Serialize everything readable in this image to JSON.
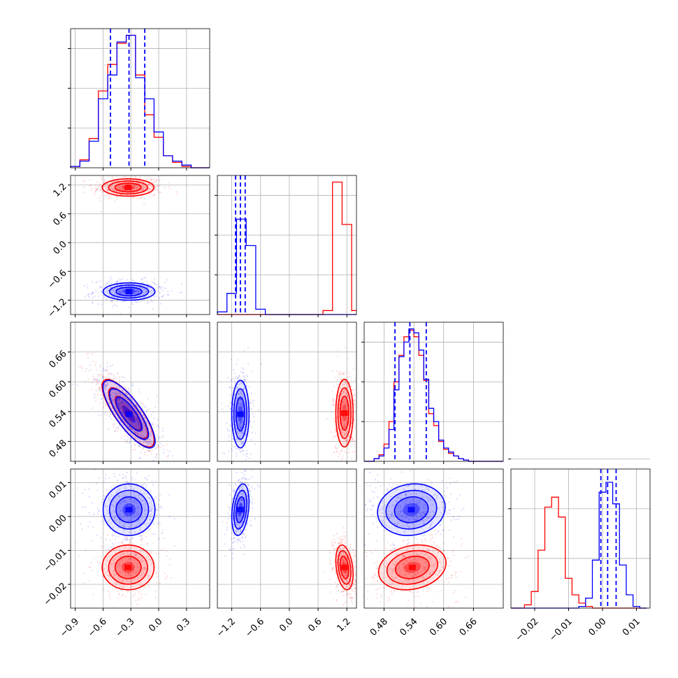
{
  "chart_data": {
    "type": "corner",
    "colors": {
      "series_a": "#0000ff",
      "series_b": "#ff0000",
      "grid": "#b0b0b0"
    },
    "grid": true,
    "parameters": [
      {
        "range": [
          -0.95,
          0.55
        ],
        "ticks": [
          -0.9,
          -0.6,
          -0.3,
          0.0,
          0.3
        ],
        "tick_labels": [
          "−0.9",
          "−0.6",
          "−0.3",
          "0.0",
          "0.3"
        ]
      },
      {
        "range": [
          -1.5,
          1.4
        ],
        "ticks": [
          -1.2,
          -0.6,
          0.0,
          0.6,
          1.2
        ],
        "tick_labels": [
          "−1.2",
          "−0.6",
          "0.0",
          "0.6",
          "1.2"
        ]
      },
      {
        "range": [
          0.44,
          0.72
        ],
        "ticks": [
          0.48,
          0.54,
          0.6,
          0.66
        ],
        "tick_labels": [
          "0.48",
          "0.54",
          "0.60",
          "0.66"
        ]
      },
      {
        "range": [
          -0.027,
          0.014
        ],
        "ticks": [
          -0.02,
          -0.01,
          0.0,
          0.01
        ],
        "tick_labels": [
          "−0.02",
          "−0.01",
          "0.00",
          "0.01"
        ]
      }
    ],
    "series": [
      {
        "color": "#0000ff",
        "mean": [
          -0.32,
          -1.02,
          0.535,
          0.002
        ],
        "sd": [
          0.14,
          0.09,
          0.034,
          0.0038
        ],
        "quantiles": [
          [
            -0.52,
            -0.32,
            -0.15
          ],
          [
            -1.12,
            -1.02,
            -0.92
          ],
          [
            0.502,
            0.532,
            0.565
          ],
          [
            -0.0005,
            0.0015,
            0.004
          ]
        ],
        "corr": {
          "0-2": -0.8,
          "1-3": 0.3,
          "2-3": 0.1
        }
      },
      {
        "color": "#ff0000",
        "mean": [
          -0.33,
          1.15,
          0.537,
          -0.015
        ],
        "sd": [
          0.14,
          0.09,
          0.034,
          0.0033
        ],
        "quantiles": [],
        "corr": {
          "0-2": -0.8,
          "1-3": -0.3,
          "2-3": 0.2
        }
      }
    ],
    "histograms": [
      {
        "bins": [
          -0.95,
          -0.85,
          -0.75,
          -0.65,
          -0.55,
          -0.45,
          -0.35,
          -0.25,
          -0.15,
          -0.05,
          0.05,
          0.15,
          0.25,
          0.35,
          0.45,
          0.55
        ],
        "series_a": [
          0.01,
          0.05,
          0.2,
          0.52,
          0.7,
          0.95,
          1.0,
          0.68,
          0.52,
          0.27,
          0.09,
          0.05,
          0.02,
          0.0,
          0.0
        ],
        "series_b": [
          0.01,
          0.06,
          0.22,
          0.58,
          0.78,
          0.94,
          1.0,
          0.7,
          0.4,
          0.23,
          0.09,
          0.04,
          0.01,
          0.0,
          0.0
        ],
        "ylim": [
          0,
          1.05
        ]
      },
      {
        "bins": [
          -1.5,
          -1.3,
          -1.1,
          -0.9,
          -0.7,
          -0.5,
          -0.3,
          -0.1,
          0.1,
          0.3,
          0.5,
          0.7,
          0.9,
          1.1,
          1.3,
          1.4
        ],
        "series_a": [
          0.02,
          0.16,
          0.72,
          0.52,
          0.04,
          0.0,
          0.0,
          0.0,
          0.0,
          0.0,
          0.0,
          0.0,
          0.0,
          0.0,
          0.0
        ],
        "series_b": [
          0.0,
          0.0,
          0.0,
          0.0,
          0.0,
          0.0,
          0.0,
          0.0,
          0.0,
          0.0,
          0.0,
          0.03,
          1.0,
          0.68,
          0.03
        ],
        "ylim": [
          0,
          1.05
        ]
      },
      {
        "bins": [
          0.44,
          0.45,
          0.46,
          0.47,
          0.48,
          0.49,
          0.5,
          0.51,
          0.52,
          0.53,
          0.54,
          0.55,
          0.56,
          0.57,
          0.58,
          0.59,
          0.6,
          0.61,
          0.62,
          0.63,
          0.64,
          0.65,
          0.66,
          0.67,
          0.68,
          0.69,
          0.7,
          0.71,
          0.72
        ],
        "series_a": [
          0.0,
          0.0,
          0.02,
          0.04,
          0.1,
          0.24,
          0.54,
          0.79,
          0.9,
          1.0,
          0.97,
          0.84,
          0.62,
          0.4,
          0.3,
          0.16,
          0.1,
          0.07,
          0.04,
          0.02,
          0.01,
          0.0,
          0.0,
          0.0,
          0.0,
          0.0,
          0.0,
          0.0
        ],
        "series_b": [
          0.0,
          0.0,
          0.02,
          0.05,
          0.13,
          0.3,
          0.6,
          0.8,
          0.94,
          0.99,
          0.94,
          0.8,
          0.61,
          0.36,
          0.27,
          0.15,
          0.09,
          0.06,
          0.04,
          0.02,
          0.01,
          0.0,
          0.0,
          0.0,
          0.0,
          0.0,
          0.0,
          0.0
        ],
        "ylim": [
          0,
          1.05
        ]
      },
      {
        "bins": [
          -0.027,
          -0.025,
          -0.023,
          -0.021,
          -0.019,
          -0.017,
          -0.015,
          -0.013,
          -0.011,
          -0.009,
          -0.007,
          -0.005,
          -0.003,
          -0.001,
          0.001,
          0.003,
          0.005,
          0.007,
          0.009,
          0.011,
          0.013
        ],
        "series_a": [
          0.0,
          0.0,
          0.0,
          0.0,
          0.0,
          0.0,
          0.0,
          0.0,
          0.0,
          0.0,
          0.01,
          0.06,
          0.29,
          0.7,
          0.76,
          0.63,
          0.26,
          0.08,
          0.01,
          0.0
        ],
        "series_b": [
          0.0,
          0.0,
          0.02,
          0.1,
          0.35,
          0.61,
          0.67,
          0.55,
          0.18,
          0.08,
          0.03,
          0.01,
          0.0,
          0.0,
          0.0,
          0.0,
          0.0,
          0.0,
          0.0,
          0.0
        ],
        "ylim": [
          0,
          0.84
        ]
      }
    ]
  }
}
